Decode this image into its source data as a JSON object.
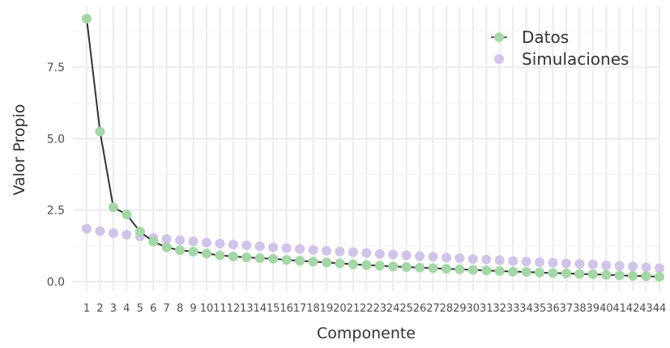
{
  "chart_data": {
    "type": "line",
    "xlabel": "Componente",
    "ylabel": "Valor Propio",
    "xlim": [
      1,
      44
    ],
    "ylim": [
      0,
      9.2
    ],
    "y_ticks": [
      "0.0",
      "2.5",
      "5.0",
      "7.5"
    ],
    "x_tick_labels": [
      "1",
      "2",
      "3",
      "4",
      "5",
      "6",
      "7",
      "8",
      "9",
      "10",
      "11",
      "12",
      "13",
      "14",
      "15",
      "16",
      "17",
      "18",
      "19",
      "20",
      "21",
      "22",
      "23",
      "24",
      "25",
      "26",
      "27",
      "28",
      "29",
      "30",
      "31",
      "32",
      "33",
      "34",
      "35",
      "36",
      "37",
      "38",
      "39",
      "40",
      "41",
      "42",
      "43",
      "44"
    ],
    "grid": true,
    "legend_position": "top-right",
    "series": [
      {
        "name": "Datos",
        "color": "#a5d6a7",
        "line_color": "#333333",
        "x": [
          1,
          2,
          3,
          4,
          5,
          6,
          7,
          8,
          9,
          10,
          11,
          12,
          13,
          14,
          15,
          16,
          17,
          18,
          19,
          20,
          21,
          22,
          23,
          24,
          25,
          26,
          27,
          28,
          29,
          30,
          31,
          32,
          33,
          34,
          35,
          36,
          37,
          38,
          39,
          40,
          41,
          42,
          43,
          44
        ],
        "values": [
          9.2,
          5.25,
          2.6,
          2.35,
          1.75,
          1.4,
          1.2,
          1.1,
          1.05,
          0.98,
          0.92,
          0.88,
          0.85,
          0.82,
          0.8,
          0.76,
          0.73,
          0.7,
          0.67,
          0.64,
          0.61,
          0.58,
          0.56,
          0.53,
          0.51,
          0.49,
          0.47,
          0.45,
          0.43,
          0.41,
          0.39,
          0.37,
          0.35,
          0.34,
          0.32,
          0.3,
          0.29,
          0.27,
          0.26,
          0.24,
          0.22,
          0.2,
          0.19,
          0.17
        ]
      },
      {
        "name": "Simulaciones",
        "color": "#d1c4e9",
        "x": [
          1,
          2,
          3,
          4,
          5,
          6,
          7,
          8,
          9,
          10,
          11,
          12,
          13,
          14,
          15,
          16,
          17,
          18,
          19,
          20,
          21,
          22,
          23,
          24,
          25,
          26,
          27,
          28,
          29,
          30,
          31,
          32,
          33,
          34,
          35,
          36,
          37,
          38,
          39,
          40,
          41,
          42,
          43,
          44
        ],
        "values": [
          1.85,
          1.77,
          1.7,
          1.64,
          1.58,
          1.53,
          1.49,
          1.45,
          1.41,
          1.37,
          1.33,
          1.3,
          1.27,
          1.24,
          1.2,
          1.17,
          1.14,
          1.11,
          1.08,
          1.05,
          1.03,
          1.0,
          0.97,
          0.95,
          0.92,
          0.89,
          0.87,
          0.84,
          0.82,
          0.79,
          0.77,
          0.75,
          0.72,
          0.7,
          0.68,
          0.66,
          0.64,
          0.62,
          0.6,
          0.57,
          0.55,
          0.53,
          0.5,
          0.47
        ]
      }
    ]
  }
}
